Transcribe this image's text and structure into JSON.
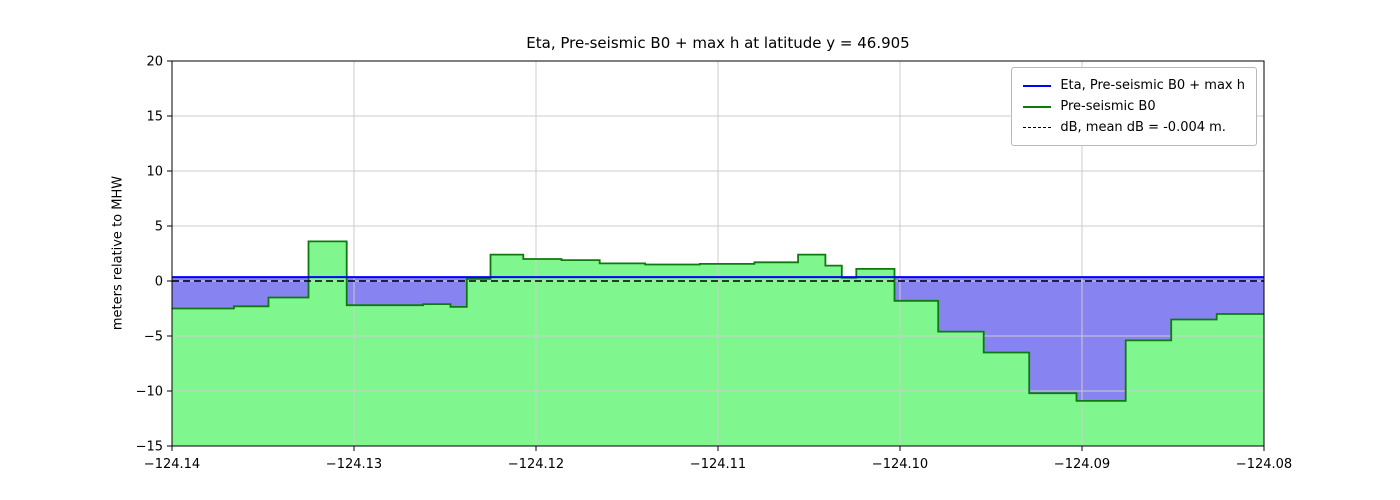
{
  "chart_data": {
    "type": "area",
    "title": "Eta, Pre-seismic B0 + max h at latitude y = 46.905",
    "ylabel": "meters relative to MHW",
    "xlabel": "",
    "xlim": [
      -124.14,
      -124.08
    ],
    "ylim": [
      -15,
      20
    ],
    "x_ticks": [
      -124.14,
      -124.13,
      -124.12,
      -124.11,
      -124.1,
      -124.09,
      -124.08
    ],
    "x_tick_labels": [
      "−124.14",
      "−124.13",
      "−124.12",
      "−124.11",
      "−124.10",
      "−124.09",
      "−124.08"
    ],
    "y_ticks": [
      -15,
      -10,
      -5,
      0,
      5,
      10,
      15,
      20
    ],
    "y_tick_labels": [
      "−15",
      "−10",
      "−5",
      "0",
      "5",
      "10",
      "15",
      "20"
    ],
    "grid": true,
    "grid_color": "#cccccc",
    "eta_value": 0.35,
    "db_value": 0.0,
    "colors": {
      "eta_line": "#0000ff",
      "eta_fill": "rgba(25,20,230,0.52)",
      "b0_edge": "#0e7a0e",
      "b0_fill": "rgba(0,240,30,0.5)",
      "db_line": "#000000"
    },
    "legend": {
      "position": "upper right",
      "entries": [
        {
          "label": "Eta, Pre-seismic B0 + max h",
          "color": "#0000ff",
          "dash": false
        },
        {
          "label": "Pre-seismic B0",
          "color": "#0e7a0e",
          "dash": false
        },
        {
          "label": "dB, mean dB = -0.004 m.",
          "color": "#000000",
          "dash": true
        }
      ]
    },
    "b0_steps": [
      [
        -124.14,
        -2.5
      ],
      [
        -124.1366,
        -2.3
      ],
      [
        -124.1347,
        -1.5
      ],
      [
        -124.1325,
        3.6
      ],
      [
        -124.1304,
        -2.2
      ],
      [
        -124.1262,
        -2.1
      ],
      [
        -124.1247,
        -2.35
      ],
      [
        -124.1238,
        0.2
      ],
      [
        -124.1225,
        2.4
      ],
      [
        -124.1207,
        2.0
      ],
      [
        -124.1186,
        1.9
      ],
      [
        -124.1165,
        1.6
      ],
      [
        -124.114,
        1.5
      ],
      [
        -124.111,
        1.55
      ],
      [
        -124.108,
        1.7
      ],
      [
        -124.1056,
        2.4
      ],
      [
        -124.1041,
        1.4
      ],
      [
        -124.1032,
        0.3
      ],
      [
        -124.1024,
        1.1
      ],
      [
        -124.1003,
        -1.8
      ],
      [
        -124.0979,
        -4.6
      ],
      [
        -124.0954,
        -6.5
      ],
      [
        -124.0929,
        -10.2
      ],
      [
        -124.0903,
        -10.9
      ],
      [
        -124.0876,
        -5.4
      ],
      [
        -124.0851,
        -3.5
      ],
      [
        -124.0826,
        -3.0
      ],
      [
        -124.08,
        -3.0
      ]
    ]
  }
}
